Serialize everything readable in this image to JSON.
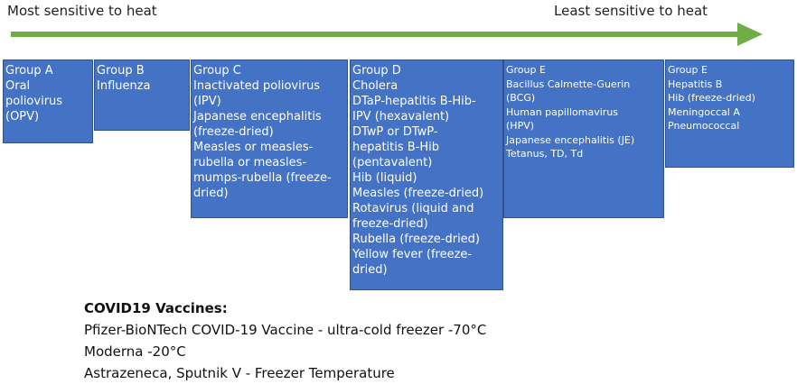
{
  "heat_scale": {
    "left_label": "Most sensitive to heat",
    "right_label": "Least sensitive to heat",
    "arrow_color": "#70AD47"
  },
  "colors": {
    "box_fill": "#4472C4",
    "box_border": "#2F528F",
    "box_text": "#FFFFFF"
  },
  "groups": [
    {
      "id": "a",
      "lines": [
        "Group A",
        "Oral",
        "poliovirus",
        "(OPV)"
      ]
    },
    {
      "id": "b",
      "lines": [
        "Group B",
        "Influenza"
      ]
    },
    {
      "id": "c",
      "lines": [
        "Group C",
        "Inactivated poliovirus",
        "(IPV)",
        "Japanese encephalitis",
        "(freeze-dried)",
        "Measles or measles-",
        "rubella or measles-",
        "mumps-rubella (freeze-",
        "dried)"
      ]
    },
    {
      "id": "d",
      "lines": [
        "Group D",
        "Cholera",
        "DTaP-hepatitis B-Hib-",
        "IPV (hexavalent)",
        "DTwP or DTwP-",
        "hepatitis B-Hib",
        "(pentavalent)",
        "Hib (liquid)",
        "Measles (freeze-dried)",
        "Rotavirus (liquid and",
        "freeze-dried)",
        "Rubella (freeze-dried)",
        "Yellow fever (freeze-",
        "dried)"
      ]
    },
    {
      "id": "e1",
      "lines": [
        "Group E",
        "Bacillus Calmette-Guerin",
        "(BCG)",
        "Human papillomavirus",
        "(HPV)",
        "Japanese encephalitis (JE)",
        "Tetanus, TD, Td"
      ]
    },
    {
      "id": "e2",
      "lines": [
        "Group E",
        "Hepatitis B",
        "Hib (freeze-dried)",
        "Meningoccal A",
        "Pneumococcal"
      ]
    }
  ],
  "covid": {
    "title": "COVID19 Vaccines:",
    "lines": [
      "Pfizer-BioNTech COVID-19 Vaccine - ultra-cold freezer -70°C",
      "Moderna -20°C",
      "Astrazeneca, Sputnik V - Freezer Temperature"
    ]
  }
}
